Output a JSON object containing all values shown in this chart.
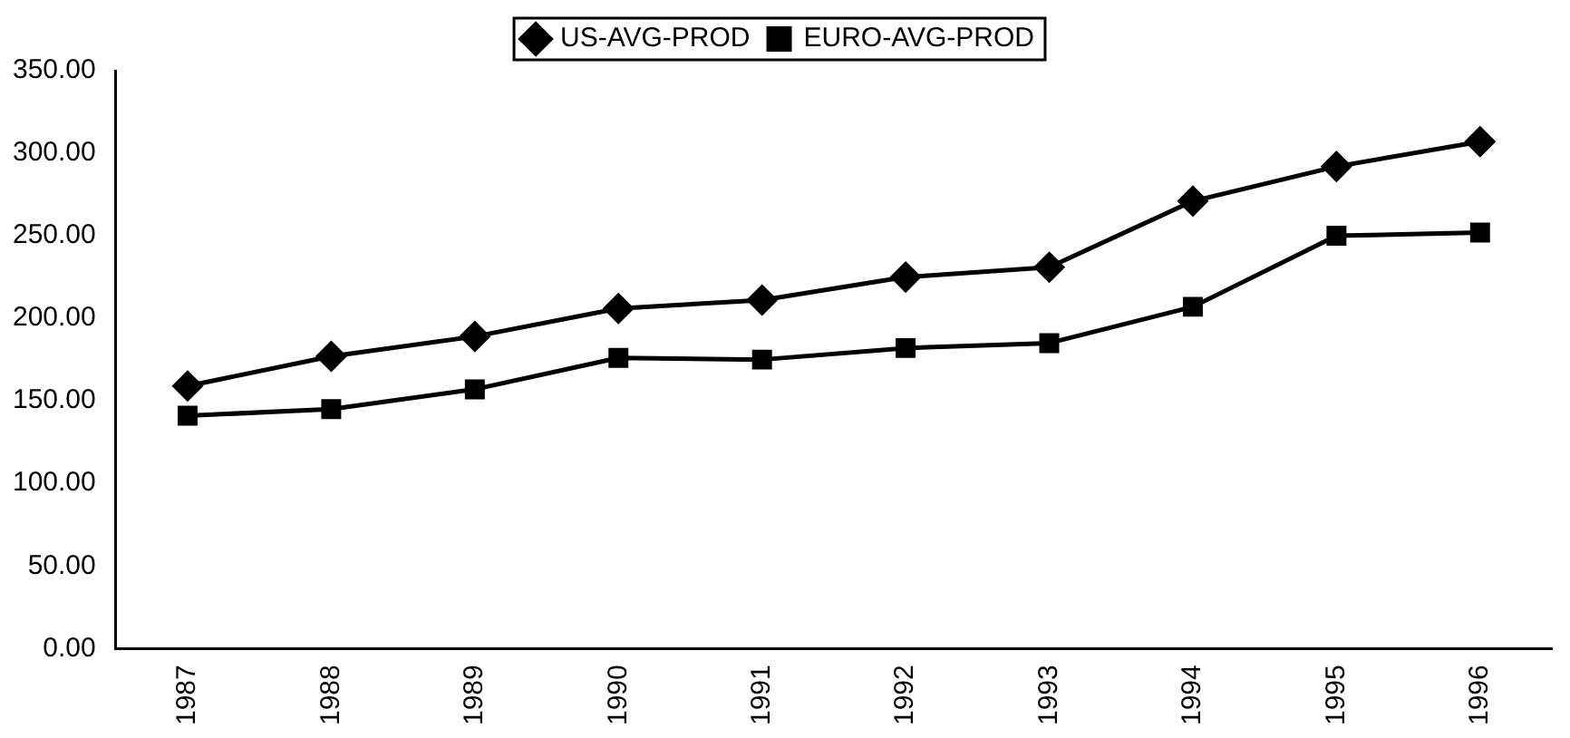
{
  "chart_data": {
    "type": "line",
    "categories": [
      "1987",
      "1988",
      "1989",
      "1990",
      "1991",
      "1992",
      "1993",
      "1994",
      "1995",
      "1996"
    ],
    "series": [
      {
        "name": "US-AVG-PROD",
        "color": "#000000",
        "marker": "diamond",
        "values": [
          159,
          177,
          189,
          206,
          211,
          225,
          231,
          271,
          292,
          307
        ]
      },
      {
        "name": "EURO-AVG-PROD",
        "color": "#000000",
        "marker": "square",
        "values": [
          141,
          145,
          157,
          176,
          175,
          182,
          185,
          207,
          250,
          252
        ]
      }
    ],
    "ylim": [
      0,
      350
    ],
    "yticks": [
      {
        "value": 0,
        "label": "0.00"
      },
      {
        "value": 50,
        "label": "50.00"
      },
      {
        "value": 100,
        "label": "100.00"
      },
      {
        "value": 150,
        "label": "150.00"
      },
      {
        "value": 200,
        "label": "200.00"
      },
      {
        "value": 250,
        "label": "250.00"
      },
      {
        "value": 300,
        "label": "300.00"
      },
      {
        "value": 350,
        "label": "350.00"
      }
    ],
    "grid": false,
    "legend": "top",
    "line_style": "solid"
  }
}
